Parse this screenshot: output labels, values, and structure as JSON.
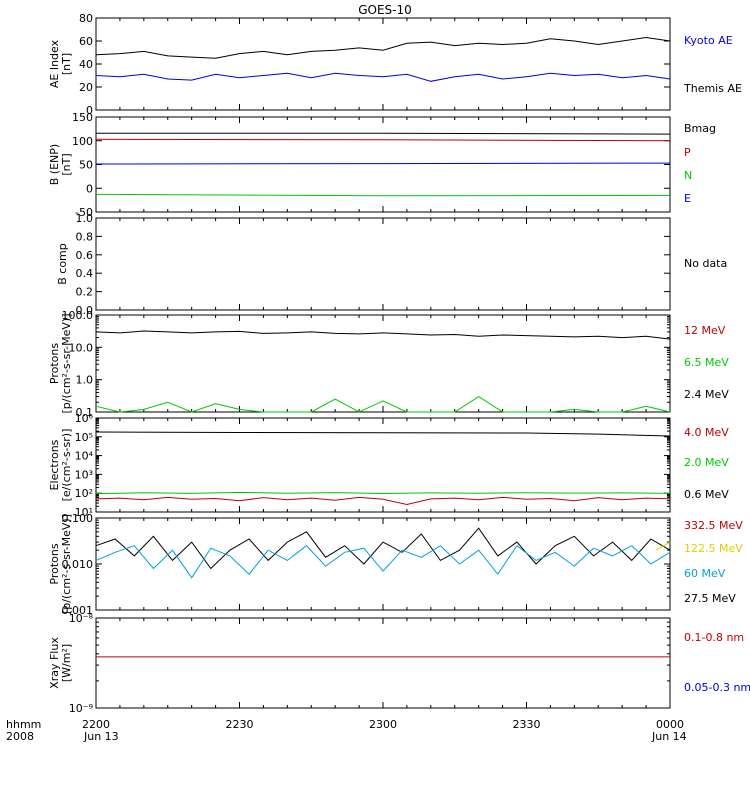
{
  "title": "GOES-10",
  "footer": {
    "hhmm_label": "hhmm",
    "year_label": "2008",
    "ticks": [
      "2200",
      "2230",
      "2300",
      "2330",
      "0000"
    ],
    "dates": [
      "Jun 13",
      "Jun 14"
    ]
  },
  "colors": {
    "black": "#000000",
    "red": "#c00000",
    "green": "#00c800",
    "blue": "#0000e0",
    "cyan": "#00a0e0",
    "yellow": "#e0d000"
  },
  "chart_data": [
    {
      "type": "line",
      "ylabel": [
        "AE Index",
        "[nT]"
      ],
      "ylim": [
        0,
        80
      ],
      "yticks": [
        "0",
        "20",
        "40",
        "60",
        "80"
      ],
      "legend": [
        "Kyoto AE",
        "Themis AE"
      ],
      "legend_colors": [
        "blue",
        "black"
      ],
      "series": [
        {
          "color": "black",
          "x_minutes": [
            0,
            5,
            10,
            15,
            20,
            25,
            30,
            35,
            40,
            45,
            50,
            55,
            60,
            65,
            70,
            75,
            80,
            85,
            90,
            95,
            100,
            105,
            110,
            115,
            120
          ],
          "values": [
            48,
            49,
            51,
            47,
            46,
            45,
            49,
            51,
            48,
            51,
            52,
            54,
            52,
            58,
            59,
            56,
            58,
            57,
            58,
            62,
            60,
            57,
            60,
            63,
            60
          ]
        },
        {
          "color": "blue",
          "x_minutes": [
            0,
            5,
            10,
            15,
            20,
            25,
            30,
            35,
            40,
            45,
            50,
            55,
            60,
            65,
            70,
            75,
            80,
            85,
            90,
            95,
            100,
            105,
            110,
            115,
            120
          ],
          "values": [
            30,
            29,
            31,
            27,
            26,
            31,
            28,
            30,
            32,
            28,
            32,
            30,
            29,
            31,
            25,
            29,
            31,
            27,
            29,
            32,
            30,
            31,
            28,
            30,
            27
          ]
        }
      ]
    },
    {
      "type": "line",
      "ylabel": [
        "B (ENP)",
        "[nT]"
      ],
      "ylim": [
        -50,
        150
      ],
      "yticks": [
        "-50",
        "0",
        "50",
        "100",
        "150"
      ],
      "legend": [
        "Bmag",
        "P",
        "N",
        "E"
      ],
      "legend_colors": [
        "black",
        "red",
        "green",
        "blue"
      ],
      "series": [
        {
          "color": "black",
          "x_minutes": [
            0,
            60,
            120
          ],
          "values": [
            116,
            116,
            114
          ]
        },
        {
          "color": "red",
          "x_minutes": [
            0,
            60,
            120
          ],
          "values": [
            103,
            102,
            100
          ]
        },
        {
          "color": "blue",
          "x_minutes": [
            0,
            60,
            120
          ],
          "values": [
            51,
            52,
            53
          ]
        },
        {
          "color": "green",
          "x_minutes": [
            0,
            60,
            120
          ],
          "values": [
            -13,
            -16,
            -15
          ]
        }
      ]
    },
    {
      "type": "line",
      "ylabel": [
        "B comp"
      ],
      "ylim": [
        0,
        1
      ],
      "yticks": [
        "0.0",
        "0.2",
        "0.4",
        "0.6",
        "0.8",
        "1.0"
      ],
      "legend": [
        "No data"
      ],
      "legend_colors": [
        "black"
      ],
      "series": []
    },
    {
      "type": "line",
      "scale": "log",
      "ylabel": [
        "Protons",
        "[p/(cm²-s-sr-MeV)]"
      ],
      "ylim": [
        0.1,
        100
      ],
      "yticks": [
        "0.1",
        "1.0",
        "10.0",
        "100.0"
      ],
      "legend": [
        "12 MeV",
        "6.5 MeV",
        "2.4 MeV"
      ],
      "legend_colors": [
        "red",
        "green",
        "black"
      ],
      "series": [
        {
          "color": "black",
          "x_minutes": [
            0,
            5,
            10,
            15,
            20,
            25,
            30,
            35,
            40,
            45,
            50,
            55,
            60,
            65,
            70,
            75,
            80,
            85,
            90,
            95,
            100,
            105,
            110,
            115,
            120
          ],
          "values": [
            30,
            28,
            32,
            30,
            28,
            30,
            31,
            27,
            28,
            30,
            27,
            26,
            28,
            26,
            24,
            25,
            22,
            24,
            23,
            22,
            21,
            22,
            20,
            22,
            18
          ]
        },
        {
          "color": "green",
          "x_minutes": [
            0,
            5,
            10,
            15,
            20,
            25,
            30,
            35,
            40,
            45,
            50,
            55,
            60,
            65,
            70,
            75,
            80,
            85,
            90,
            95,
            100,
            105,
            110,
            115,
            120
          ],
          "values": [
            0.15,
            0.1,
            0.12,
            0.2,
            0.1,
            0.18,
            0.12,
            0.1,
            0.1,
            0.1,
            0.25,
            0.1,
            0.22,
            0.1,
            0.1,
            0.1,
            0.3,
            0.1,
            0.1,
            0.1,
            0.12,
            0.1,
            0.1,
            0.15,
            0.1
          ]
        }
      ]
    },
    {
      "type": "line",
      "scale": "log",
      "ylabel": [
        "Electrons",
        "[e/(cm²-s-sr)]"
      ],
      "ylim": [
        10,
        1000000
      ],
      "yticks": [
        "10¹",
        "10²",
        "10³",
        "10⁴",
        "10⁵",
        "10⁶"
      ],
      "legend": [
        "4.0 MeV",
        "2.0 MeV",
        "0.6 MeV"
      ],
      "legend_colors": [
        "red",
        "green",
        "black"
      ],
      "series": [
        {
          "color": "black",
          "x_minutes": [
            0,
            30,
            60,
            90,
            105,
            120
          ],
          "values": [
            180000,
            170000,
            165000,
            160000,
            140000,
            110000
          ]
        },
        {
          "color": "green",
          "x_minutes": [
            0,
            10,
            20,
            30,
            40,
            50,
            60,
            70,
            80,
            90,
            100,
            110,
            120
          ],
          "values": [
            95,
            105,
            98,
            110,
            100,
            108,
            96,
            104,
            99,
            106,
            101,
            104,
            98
          ]
        },
        {
          "color": "red",
          "x_minutes": [
            0,
            5,
            10,
            15,
            20,
            25,
            30,
            35,
            40,
            45,
            50,
            55,
            60,
            65,
            70,
            75,
            80,
            85,
            90,
            95,
            100,
            105,
            110,
            115,
            120
          ],
          "values": [
            50,
            55,
            45,
            60,
            48,
            52,
            40,
            58,
            45,
            55,
            42,
            60,
            48,
            25,
            50,
            55,
            45,
            60,
            48,
            52,
            40,
            58,
            45,
            55,
            50
          ]
        }
      ]
    },
    {
      "type": "line",
      "scale": "log",
      "ylabel": [
        "Protons",
        "[p/(cm²-s-sr-MeV)]"
      ],
      "ylim": [
        0.001,
        0.1
      ],
      "yticks": [
        "0.001",
        "0.010",
        "0.100"
      ],
      "legend": [
        "332.5 MeV",
        "122.5 MeV",
        "60 MeV",
        "27.5 MeV"
      ],
      "legend_colors": [
        "red",
        "yellow",
        "cyan",
        "black"
      ],
      "series": [
        {
          "color": "black",
          "x_minutes": [
            0,
            4,
            8,
            12,
            16,
            20,
            24,
            28,
            32,
            36,
            40,
            44,
            48,
            52,
            56,
            60,
            64,
            68,
            72,
            76,
            80,
            84,
            88,
            92,
            96,
            100,
            104,
            108,
            112,
            116,
            120
          ],
          "values": [
            0.025,
            0.035,
            0.015,
            0.04,
            0.012,
            0.03,
            0.008,
            0.02,
            0.035,
            0.012,
            0.03,
            0.05,
            0.014,
            0.025,
            0.01,
            0.03,
            0.018,
            0.045,
            0.012,
            0.02,
            0.06,
            0.015,
            0.03,
            0.01,
            0.025,
            0.04,
            0.015,
            0.03,
            0.012,
            0.035,
            0.02
          ]
        },
        {
          "color": "cyan",
          "x_minutes": [
            0,
            4,
            8,
            12,
            16,
            20,
            24,
            28,
            32,
            36,
            40,
            44,
            48,
            52,
            56,
            60,
            64,
            68,
            72,
            76,
            80,
            84,
            88,
            92,
            96,
            100,
            104,
            108,
            112,
            116,
            120
          ],
          "values": [
            0.012,
            0.018,
            0.025,
            0.008,
            0.02,
            0.005,
            0.022,
            0.015,
            0.006,
            0.02,
            0.012,
            0.025,
            0.009,
            0.018,
            0.022,
            0.007,
            0.02,
            0.014,
            0.025,
            0.01,
            0.02,
            0.006,
            0.025,
            0.012,
            0.018,
            0.009,
            0.022,
            0.015,
            0.025,
            0.01,
            0.018
          ]
        },
        {
          "color": "yellow",
          "x_minutes": [
            117,
            120
          ],
          "values": [
            0.02,
            0.03
          ]
        }
      ]
    },
    {
      "type": "line",
      "scale": "log",
      "ylabel": [
        "Xray Flux",
        "[W/m²]"
      ],
      "ylim": [
        1e-09,
        1e-08
      ],
      "yticks": [
        "10⁻⁹",
        "10⁻⁸"
      ],
      "legend": [
        "0.1-0.8 nm",
        "0.05-0.3 nm"
      ],
      "legend_colors": [
        "red",
        "blue"
      ],
      "series": [
        {
          "color": "red",
          "x_minutes": [
            0,
            120
          ],
          "values": [
            3.7e-09,
            3.7e-09
          ]
        }
      ]
    }
  ]
}
